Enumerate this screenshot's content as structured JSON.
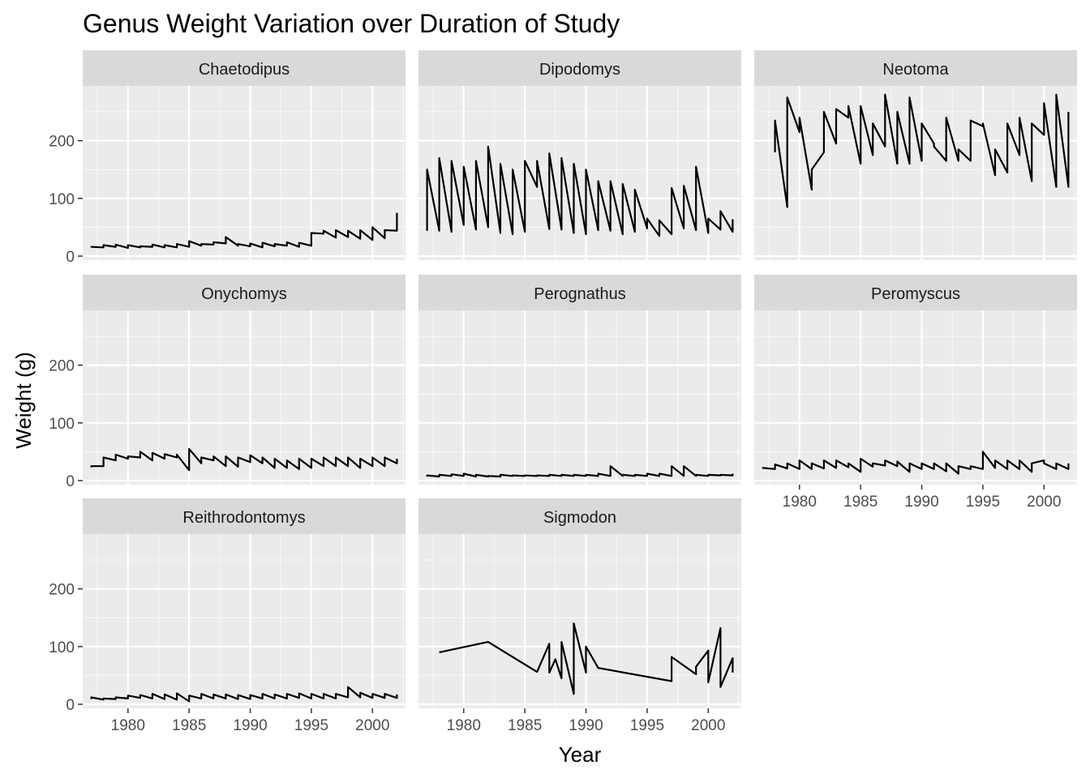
{
  "chart_data": {
    "type": "line",
    "title": "Genus Weight Variation over Duration of Study",
    "xlabel": "Year",
    "ylabel": "Weight (g)",
    "xlim": [
      1976.3,
      2002.7
    ],
    "ylim": [
      -7,
      295
    ],
    "x_ticks": [
      1980,
      1985,
      1990,
      1995,
      2000
    ],
    "y_ticks": [
      0,
      100,
      200
    ],
    "grid": true,
    "line_color": "#000000",
    "panel_background": "#ebebeb",
    "strip_background": "#d9d9d9",
    "panels": [
      {
        "name": "Chaetodipus",
        "x": [
          1977,
          1977,
          1978,
          1978,
          1979,
          1979,
          1980,
          1980,
          1981,
          1981,
          1982,
          1982,
          1983,
          1983,
          1984,
          1984,
          1985,
          1985,
          1986,
          1986,
          1987,
          1987,
          1988,
          1988,
          1989,
          1989,
          1990,
          1990,
          1991,
          1991,
          1992,
          1992,
          1993,
          1993,
          1994,
          1994,
          1995,
          1995,
          1996,
          1996,
          1997,
          1997,
          1998,
          1998,
          1999,
          1999,
          2000,
          2000,
          2001,
          2001,
          2002,
          2002
        ],
        "y": [
          15,
          16,
          15,
          19,
          16,
          20,
          14,
          19,
          15,
          17,
          16,
          20,
          15,
          19,
          15,
          21,
          16,
          26,
          18,
          21,
          20,
          24,
          22,
          33,
          18,
          21,
          17,
          22,
          15,
          23,
          17,
          21,
          18,
          24,
          16,
          23,
          18,
          40,
          39,
          44,
          32,
          45,
          33,
          44,
          30,
          45,
          28,
          50,
          31,
          45,
          44,
          75
        ]
      },
      {
        "name": "Dipodomys",
        "x": [
          1977,
          1977,
          1978,
          1978,
          1979,
          1979,
          1980,
          1980,
          1981,
          1981,
          1982,
          1982,
          1983,
          1983,
          1984,
          1984,
          1985,
          1985,
          1986,
          1986,
          1987,
          1987,
          1988,
          1988,
          1989,
          1989,
          1990,
          1990,
          1991,
          1991,
          1992,
          1992,
          1993,
          1993,
          1994,
          1994,
          1995,
          1995,
          1996,
          1996,
          1997,
          1997,
          1998,
          1998,
          1999,
          1999,
          2000,
          2000,
          2001,
          2001,
          2002,
          2002
        ],
        "y": [
          44,
          150,
          44,
          170,
          42,
          165,
          54,
          155,
          46,
          165,
          50,
          190,
          40,
          160,
          38,
          150,
          42,
          165,
          120,
          165,
          47,
          178,
          46,
          170,
          40,
          160,
          38,
          150,
          45,
          130,
          44,
          130,
          38,
          125,
          42,
          115,
          48,
          65,
          35,
          62,
          38,
          118,
          48,
          122,
          45,
          155,
          40,
          65,
          46,
          78,
          42,
          64
        ]
      },
      {
        "name": "Neotoma",
        "x": [
          1978,
          1978,
          1979,
          1979,
          1980,
          1980,
          1981,
          1981,
          1982,
          1982,
          1983,
          1983,
          1984,
          1984,
          1985,
          1985,
          1986,
          1986,
          1987,
          1987,
          1988,
          1988,
          1989,
          1989,
          1990,
          1990,
          1991,
          1991,
          1992,
          1992,
          1993,
          1993,
          1994,
          1994,
          1995,
          1995,
          1996,
          1996,
          1997,
          1997,
          1998,
          1998,
          1999,
          1999,
          2000,
          2000,
          2001,
          2001,
          2002,
          2002
        ],
        "y": [
          180,
          235,
          85,
          275,
          215,
          240,
          115,
          150,
          180,
          250,
          195,
          255,
          240,
          260,
          160,
          260,
          175,
          230,
          190,
          280,
          160,
          250,
          160,
          275,
          165,
          230,
          195,
          190,
          165,
          240,
          165,
          185,
          165,
          235,
          225,
          230,
          140,
          185,
          145,
          230,
          175,
          240,
          130,
          230,
          210,
          265,
          120,
          280,
          120,
          250
        ]
      },
      {
        "name": "Onychomys",
        "x": [
          1977,
          1977,
          1978,
          1978,
          1979,
          1979,
          1980,
          1980,
          1981,
          1981,
          1982,
          1982,
          1983,
          1983,
          1984,
          1984,
          1985,
          1985,
          1986,
          1986,
          1987,
          1987,
          1988,
          1988,
          1989,
          1989,
          1990,
          1990,
          1991,
          1991,
          1992,
          1992,
          1993,
          1993,
          1994,
          1994,
          1995,
          1995,
          1996,
          1996,
          1997,
          1997,
          1998,
          1998,
          1999,
          1999,
          2000,
          2000,
          2001,
          2001,
          2002,
          2002
        ],
        "y": [
          23,
          25,
          25,
          40,
          35,
          45,
          38,
          42,
          40,
          50,
          35,
          48,
          38,
          46,
          40,
          45,
          18,
          55,
          30,
          40,
          35,
          42,
          25,
          42,
          24,
          40,
          32,
          44,
          30,
          40,
          22,
          38,
          22,
          35,
          20,
          38,
          22,
          38,
          25,
          40,
          25,
          40,
          25,
          40,
          22,
          38,
          25,
          40,
          25,
          40,
          30,
          38
        ]
      },
      {
        "name": "Perognathus",
        "x": [
          1977,
          1977,
          1978,
          1978,
          1979,
          1979,
          1980,
          1980,
          1981,
          1981,
          1982,
          1982,
          1983,
          1983,
          1984,
          1984,
          1985,
          1985,
          1986,
          1986,
          1987,
          1987,
          1988,
          1988,
          1989,
          1989,
          1990,
          1990,
          1991,
          1991,
          1992,
          1992,
          1993,
          1993,
          1994,
          1994,
          1995,
          1995,
          1996,
          1996,
          1997,
          1997,
          1998,
          1998,
          1999,
          1999,
          2000,
          2000,
          2001,
          2001,
          2002,
          2002
        ],
        "y": [
          7,
          9,
          7,
          10,
          8,
          11,
          8,
          12,
          7,
          10,
          7,
          8,
          7,
          10,
          8,
          9,
          8,
          9,
          8,
          9,
          8,
          10,
          8,
          10,
          8,
          10,
          8,
          10,
          8,
          12,
          8,
          25,
          8,
          10,
          8,
          10,
          8,
          12,
          8,
          12,
          8,
          25,
          8,
          25,
          8,
          10,
          8,
          10,
          9,
          10,
          9,
          12
        ]
      },
      {
        "name": "Peromyscus",
        "x": [
          1977,
          1977,
          1978,
          1978,
          1979,
          1979,
          1980,
          1980,
          1981,
          1981,
          1982,
          1982,
          1983,
          1983,
          1984,
          1984,
          1985,
          1985,
          1986,
          1986,
          1987,
          1987,
          1988,
          1988,
          1989,
          1989,
          1990,
          1990,
          1991,
          1991,
          1992,
          1992,
          1993,
          1993,
          1994,
          1994,
          1995,
          1995,
          1996,
          1996,
          1997,
          1997,
          1998,
          1998,
          1999,
          1999,
          2000,
          2000,
          2001,
          2001,
          2002,
          2002
        ],
        "y": [
          21,
          22,
          20,
          28,
          21,
          30,
          20,
          35,
          20,
          30,
          21,
          35,
          22,
          35,
          23,
          30,
          15,
          38,
          24,
          30,
          26,
          35,
          25,
          33,
          15,
          30,
          20,
          30,
          20,
          30,
          16,
          30,
          12,
          25,
          20,
          25,
          20,
          50,
          22,
          35,
          20,
          35,
          20,
          35,
          15,
          30,
          35,
          30,
          20,
          30,
          20,
          30
        ]
      },
      {
        "name": "Reithrodontomys",
        "x": [
          1977,
          1977,
          1978,
          1978,
          1979,
          1979,
          1980,
          1980,
          1981,
          1981,
          1982,
          1982,
          1983,
          1983,
          1984,
          1984,
          1985,
          1985,
          1986,
          1986,
          1987,
          1987,
          1988,
          1988,
          1989,
          1989,
          1990,
          1990,
          1991,
          1991,
          1992,
          1992,
          1993,
          1993,
          1994,
          1994,
          1995,
          1995,
          1996,
          1996,
          1997,
          1997,
          1998,
          1998,
          1999,
          1999,
          2000,
          2000,
          2001,
          2001,
          2002,
          2002
        ],
        "y": [
          9,
          12,
          8,
          10,
          9,
          12,
          10,
          15,
          11,
          16,
          10,
          18,
          9,
          17,
          8,
          19,
          5,
          15,
          10,
          18,
          10,
          17,
          10,
          17,
          9,
          16,
          9,
          16,
          10,
          18,
          10,
          17,
          10,
          18,
          11,
          19,
          10,
          18,
          10,
          18,
          10,
          18,
          12,
          30,
          12,
          20,
          11,
          18,
          11,
          18,
          11,
          17
        ]
      },
      {
        "name": "Sigmodon",
        "x": [
          1978,
          1982,
          1986,
          1987,
          1987,
          1987.5,
          1988,
          1988,
          1989,
          1989,
          1990,
          1990,
          1991,
          1997,
          1997,
          1999,
          1999,
          2000,
          2000,
          2001,
          2001,
          2002,
          2002
        ],
        "y": [
          90,
          108,
          56,
          105,
          55,
          78,
          45,
          108,
          18,
          140,
          55,
          100,
          63,
          40,
          82,
          52,
          65,
          93,
          38,
          132,
          30,
          80,
          55
        ]
      }
    ]
  }
}
